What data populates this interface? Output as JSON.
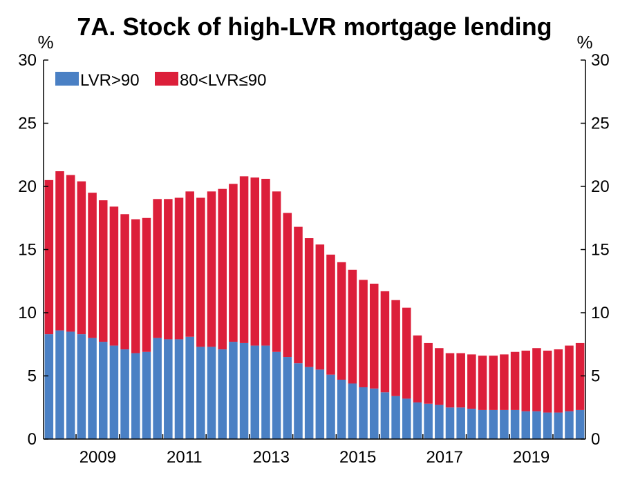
{
  "chart_data": {
    "type": "bar",
    "stacked": true,
    "title": "7A. Stock of high-LVR mortgage lending",
    "left_unit": "%",
    "right_unit": "%",
    "ylim": [
      0,
      30
    ],
    "y_ticks": [
      "0",
      "5",
      "10",
      "15",
      "20",
      "25",
      "30"
    ],
    "x_tick_labels": [
      "2009",
      "2011",
      "2013",
      "2015",
      "2017",
      "2019"
    ],
    "x_tick_categories": [
      "2009-Q1",
      "2011-Q1",
      "2013-Q1",
      "2015-Q1",
      "2017-Q1",
      "2019-Q1"
    ],
    "grid": false,
    "legend_position": "top-left",
    "categories": [
      "2008-Q2",
      "2008-Q3",
      "2008-Q4",
      "2009-Q1",
      "2009-Q2",
      "2009-Q3",
      "2009-Q4",
      "2010-Q1",
      "2010-Q2",
      "2010-Q3",
      "2010-Q4",
      "2011-Q1",
      "2011-Q2",
      "2011-Q3",
      "2011-Q4",
      "2012-Q1",
      "2012-Q2",
      "2012-Q3",
      "2012-Q4",
      "2013-Q1",
      "2013-Q2",
      "2013-Q3",
      "2013-Q4",
      "2014-Q1",
      "2014-Q2",
      "2014-Q3",
      "2014-Q4",
      "2015-Q1",
      "2015-Q2",
      "2015-Q3",
      "2015-Q4",
      "2016-Q1",
      "2016-Q2",
      "2016-Q3",
      "2016-Q4",
      "2017-Q1",
      "2017-Q2",
      "2017-Q3",
      "2017-Q4",
      "2018-Q1",
      "2018-Q2",
      "2018-Q3",
      "2018-Q4",
      "2019-Q1",
      "2019-Q2",
      "2019-Q3",
      "2019-Q4",
      "2020-Q1",
      "2020-Q2",
      "2020-Q3"
    ],
    "series": [
      {
        "name": "LVR>90",
        "color": "#4a80c4",
        "values": [
          8.3,
          8.6,
          8.5,
          8.3,
          8.0,
          7.7,
          7.4,
          7.1,
          6.8,
          6.9,
          8.0,
          7.9,
          7.9,
          8.1,
          7.3,
          7.3,
          7.1,
          7.7,
          7.6,
          7.4,
          7.4,
          6.9,
          6.5,
          6.0,
          5.7,
          5.5,
          5.1,
          4.7,
          4.4,
          4.1,
          4.0,
          3.7,
          3.4,
          3.2,
          2.9,
          2.8,
          2.7,
          2.5,
          2.5,
          2.4,
          2.3,
          2.3,
          2.3,
          2.3,
          2.2,
          2.2,
          2.1,
          2.1,
          2.2,
          2.3
        ]
      },
      {
        "name": "80<LVR≤90",
        "color": "#dc1f3a",
        "values": [
          12.2,
          12.6,
          12.4,
          12.1,
          11.5,
          11.2,
          11.0,
          10.7,
          10.6,
          10.6,
          11.0,
          11.1,
          11.2,
          11.5,
          11.8,
          12.3,
          12.7,
          12.5,
          13.2,
          13.3,
          13.2,
          12.7,
          11.4,
          10.8,
          10.2,
          9.9,
          9.5,
          9.3,
          9.0,
          8.5,
          8.3,
          8.0,
          7.6,
          7.2,
          5.3,
          4.8,
          4.5,
          4.3,
          4.3,
          4.3,
          4.3,
          4.3,
          4.4,
          4.6,
          4.8,
          5.0,
          4.9,
          5.0,
          5.2,
          5.3
        ]
      }
    ]
  }
}
